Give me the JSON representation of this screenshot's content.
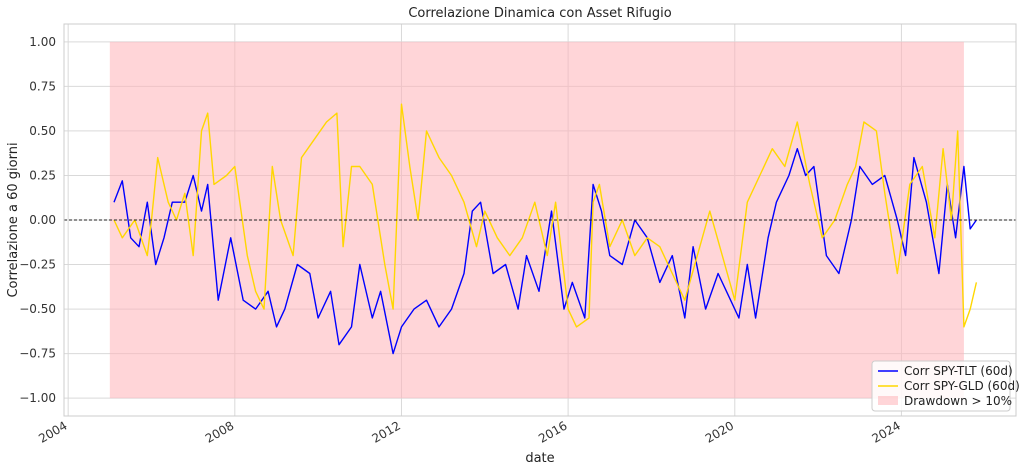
{
  "chart_data": {
    "type": "line",
    "title": "Correlazione Dinamica con Asset Rifugio",
    "xlabel": "date",
    "ylabel": "Correlazione a 60 giorni",
    "xlim": [
      2003.9,
      2026.75
    ],
    "ylim": [
      -1.1,
      1.1
    ],
    "x_ticks": [
      2004,
      2008,
      2012,
      2016,
      2020,
      2024
    ],
    "x_tick_labels": [
      "2004",
      "2008",
      "2012",
      "2016",
      "2020",
      "2024"
    ],
    "y_ticks": [
      1.0,
      0.75,
      0.5,
      0.25,
      0.0,
      -0.25,
      -0.5,
      -0.75,
      -1.0
    ],
    "y_tick_labels": [
      "1.00",
      "0.75",
      "0.50",
      "0.25",
      "0.00",
      "−0.25",
      "−0.50",
      "−0.75",
      "−1.00"
    ],
    "grid": true,
    "zero_line": {
      "y": 0.0,
      "style": "dashed",
      "color": "#222222"
    },
    "legend_position": "bottom-right",
    "shaded_regions": [
      {
        "name": "Drawdown > 10%",
        "x_start": 2005.0,
        "x_end": 2025.5,
        "y_start": -1.0,
        "y_end": 1.0,
        "color": "#ffb3b8"
      }
    ],
    "series": [
      {
        "name": "Corr SPY-TLT (60d)",
        "color": "#0000ff",
        "x": [
          2005.1,
          2005.3,
          2005.5,
          2005.7,
          2005.9,
          2006.1,
          2006.3,
          2006.5,
          2006.8,
          2007.0,
          2007.2,
          2007.35,
          2007.6,
          2007.9,
          2008.2,
          2008.5,
          2008.8,
          2009.0,
          2009.2,
          2009.5,
          2009.8,
          2010.0,
          2010.3,
          2010.5,
          2010.8,
          2011.0,
          2011.3,
          2011.5,
          2011.8,
          2012.0,
          2012.3,
          2012.6,
          2012.9,
          2013.2,
          2013.5,
          2013.7,
          2013.9,
          2014.2,
          2014.5,
          2014.8,
          2015.0,
          2015.3,
          2015.6,
          2015.9,
          2016.1,
          2016.4,
          2016.6,
          2016.8,
          2017.0,
          2017.3,
          2017.6,
          2017.9,
          2018.2,
          2018.5,
          2018.8,
          2019.0,
          2019.3,
          2019.6,
          2019.9,
          2020.1,
          2020.3,
          2020.5,
          2020.8,
          2021.0,
          2021.3,
          2021.5,
          2021.7,
          2021.9,
          2022.2,
          2022.5,
          2022.8,
          2023.0,
          2023.3,
          2023.6,
          2023.9,
          2024.1,
          2024.3,
          2024.6,
          2024.9,
          2025.1,
          2025.3,
          2025.5,
          2025.65,
          2025.8
        ],
        "y": [
          0.1,
          0.22,
          -0.1,
          -0.15,
          0.1,
          -0.25,
          -0.1,
          0.1,
          0.1,
          0.25,
          0.05,
          0.2,
          -0.45,
          -0.1,
          -0.45,
          -0.5,
          -0.4,
          -0.6,
          -0.5,
          -0.25,
          -0.3,
          -0.55,
          -0.4,
          -0.7,
          -0.6,
          -0.25,
          -0.55,
          -0.4,
          -0.75,
          -0.6,
          -0.5,
          -0.45,
          -0.6,
          -0.5,
          -0.3,
          0.05,
          0.1,
          -0.3,
          -0.25,
          -0.5,
          -0.2,
          -0.4,
          0.05,
          -0.5,
          -0.35,
          -0.55,
          0.2,
          0.05,
          -0.2,
          -0.25,
          0.0,
          -0.1,
          -0.35,
          -0.2,
          -0.55,
          -0.15,
          -0.5,
          -0.3,
          -0.45,
          -0.55,
          -0.25,
          -0.55,
          -0.1,
          0.1,
          0.25,
          0.4,
          0.25,
          0.3,
          -0.2,
          -0.3,
          0.0,
          0.3,
          0.2,
          0.25,
          0.0,
          -0.2,
          0.35,
          0.1,
          -0.3,
          0.2,
          -0.1,
          0.3,
          -0.05,
          0.0
        ]
      },
      {
        "name": "Corr SPY-GLD (60d)",
        "color": "#ffd700",
        "x": [
          2005.1,
          2005.3,
          2005.6,
          2005.9,
          2006.0,
          2006.15,
          2006.4,
          2006.6,
          2006.8,
          2007.0,
          2007.2,
          2007.35,
          2007.5,
          2007.8,
          2008.0,
          2008.3,
          2008.5,
          2008.7,
          2008.9,
          2009.1,
          2009.4,
          2009.6,
          2009.9,
          2010.2,
          2010.45,
          2010.6,
          2010.8,
          2011.0,
          2011.3,
          2011.6,
          2011.8,
          2012.0,
          2012.2,
          2012.4,
          2012.6,
          2012.9,
          2013.2,
          2013.5,
          2013.8,
          2014.0,
          2014.3,
          2014.6,
          2014.9,
          2015.2,
          2015.5,
          2015.7,
          2016.0,
          2016.2,
          2016.5,
          2016.6,
          2016.75,
          2017.0,
          2017.3,
          2017.6,
          2017.9,
          2018.2,
          2018.5,
          2018.8,
          2019.1,
          2019.4,
          2019.7,
          2020.0,
          2020.3,
          2020.6,
          2020.9,
          2021.2,
          2021.5,
          2021.8,
          2022.1,
          2022.4,
          2022.7,
          2022.9,
          2023.1,
          2023.4,
          2023.6,
          2023.9,
          2024.2,
          2024.5,
          2024.8,
          2025.0,
          2025.2,
          2025.35,
          2025.5,
          2025.65,
          2025.8
        ],
        "y": [
          0.0,
          -0.1,
          0.0,
          -0.2,
          0.0,
          0.35,
          0.1,
          0.0,
          0.15,
          -0.2,
          0.5,
          0.6,
          0.2,
          0.25,
          0.3,
          -0.2,
          -0.4,
          -0.5,
          0.3,
          0.0,
          -0.2,
          0.35,
          0.45,
          0.55,
          0.6,
          -0.15,
          0.3,
          0.3,
          0.2,
          -0.25,
          -0.5,
          0.65,
          0.3,
          0.0,
          0.5,
          0.35,
          0.25,
          0.1,
          -0.15,
          0.05,
          -0.1,
          -0.2,
          -0.1,
          0.1,
          -0.2,
          0.1,
          -0.5,
          -0.6,
          -0.55,
          0.1,
          0.2,
          -0.15,
          0.0,
          -0.2,
          -0.1,
          -0.15,
          -0.3,
          -0.45,
          -0.2,
          0.05,
          -0.2,
          -0.45,
          0.1,
          0.25,
          0.4,
          0.3,
          0.55,
          0.2,
          -0.1,
          0.0,
          0.2,
          0.3,
          0.55,
          0.5,
          0.15,
          -0.3,
          0.2,
          0.3,
          -0.1,
          0.4,
          0.0,
          0.5,
          -0.6,
          -0.5,
          -0.35
        ]
      }
    ]
  }
}
